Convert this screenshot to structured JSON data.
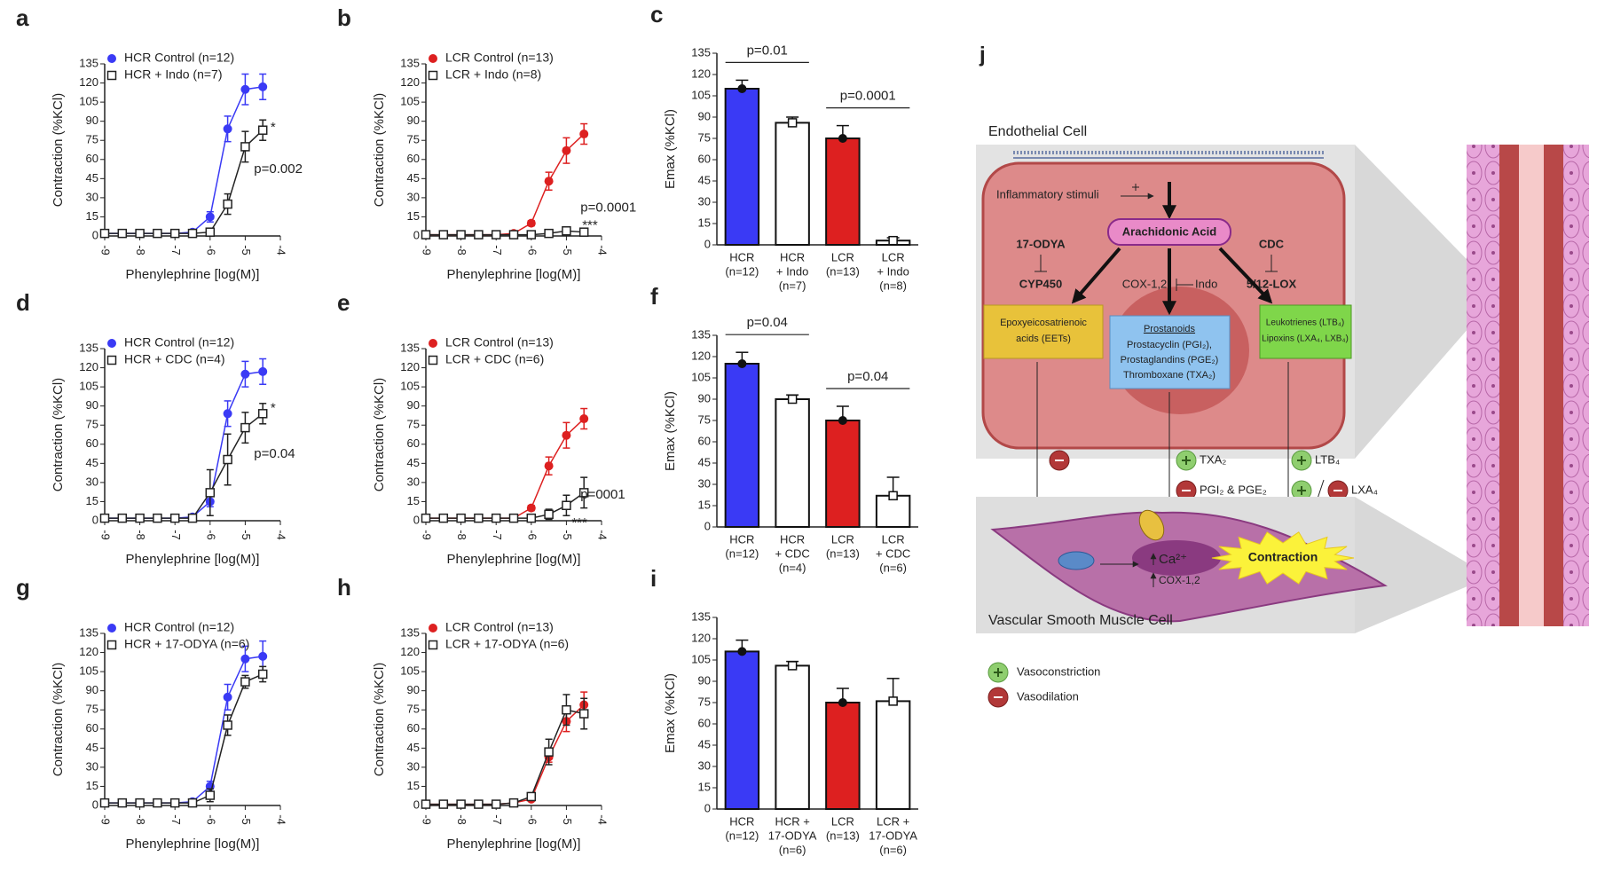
{
  "chart_data": [
    {
      "type": "line",
      "panel": "a",
      "ylabel": "Contraction (%KCl)",
      "xlabel": "Phenylephrine [log(M)]",
      "xlim": [
        -9,
        -4
      ],
      "xticks": [
        -9,
        -8,
        -7,
        -6,
        -5,
        -4
      ],
      "ylim": [
        0,
        135
      ],
      "yticks": [
        0,
        15,
        30,
        45,
        60,
        75,
        90,
        105,
        120,
        135
      ],
      "x": [
        -9,
        -8.5,
        -8,
        -7.5,
        -7,
        -6.5,
        -6,
        -5.5,
        -5,
        -4.5
      ],
      "series": [
        {
          "name": "HCR Control (n=12)",
          "color": "#3a3af5",
          "marker": "circle",
          "values": [
            2,
            2,
            2,
            2,
            2,
            3,
            15,
            84,
            115,
            117
          ],
          "errors": [
            null,
            null,
            null,
            null,
            null,
            null,
            4,
            10,
            12,
            10
          ]
        },
        {
          "name": "HCR + Indo (n=7)",
          "color": "#222222",
          "marker": "square",
          "values": [
            2,
            2,
            2,
            2,
            2,
            2,
            3,
            25,
            70,
            83
          ],
          "errors": [
            null,
            null,
            null,
            null,
            null,
            null,
            null,
            8,
            12,
            8
          ]
        }
      ],
      "annotations": [
        "*",
        "p=0.002"
      ]
    },
    {
      "type": "line",
      "panel": "b",
      "ylabel": "Contraction (%KCl)",
      "xlabel": "Phenylephrine [log(M)]",
      "xlim": [
        -9,
        -4
      ],
      "xticks": [
        -9,
        -8,
        -7,
        -6,
        -5,
        -4
      ],
      "ylim": [
        0,
        135
      ],
      "yticks": [
        0,
        15,
        30,
        45,
        60,
        75,
        90,
        105,
        120,
        135
      ],
      "x": [
        -9,
        -8.5,
        -8,
        -7.5,
        -7,
        -6.5,
        -6,
        -5.5,
        -5,
        -4.5
      ],
      "series": [
        {
          "name": "LCR Control (n=13)",
          "color": "#dd2020",
          "marker": "circle",
          "values": [
            1,
            1,
            1,
            1,
            1,
            2,
            10,
            43,
            67,
            80
          ],
          "errors": [
            null,
            null,
            null,
            null,
            null,
            null,
            2,
            7,
            10,
            8
          ]
        },
        {
          "name": "LCR + Indo (n=8)",
          "color": "#222222",
          "marker": "square",
          "values": [
            1,
            1,
            1,
            1,
            1,
            1,
            1,
            2,
            4,
            3
          ],
          "errors": [
            null,
            null,
            null,
            null,
            null,
            null,
            null,
            null,
            null,
            null
          ]
        }
      ],
      "annotations": [
        "p=0.0001",
        "***"
      ]
    },
    {
      "type": "bar",
      "panel": "c",
      "ylabel": "Emax (%KCl)",
      "ylim": [
        0,
        135
      ],
      "yticks": [
        0,
        15,
        30,
        45,
        60,
        75,
        90,
        105,
        120,
        135
      ],
      "categories": [
        [
          "HCR",
          "(n=12)"
        ],
        [
          "HCR",
          "+ Indo",
          "(n=7)"
        ],
        [
          "LCR",
          "(n=13)"
        ],
        [
          "LCR",
          "+ Indo",
          "(n=8)"
        ]
      ],
      "values": [
        110,
        86,
        75,
        3
      ],
      "errors": [
        6,
        4,
        9,
        2
      ],
      "colors": [
        "#3a3af5",
        "#ffffff",
        "#dd2020",
        "#ffffff"
      ],
      "markers": [
        "circle",
        "square",
        "circle",
        "square"
      ],
      "comparisons": [
        {
          "bars": [
            0,
            1
          ],
          "label": "p=0.01"
        },
        {
          "bars": [
            2,
            3
          ],
          "label": "p=0.0001"
        }
      ]
    },
    {
      "type": "line",
      "panel": "d",
      "ylabel": "Contraction (%KCl)",
      "xlabel": "Phenylephrine [log(M)]",
      "xlim": [
        -9,
        -4
      ],
      "xticks": [
        -9,
        -8,
        -7,
        -6,
        -5,
        -4
      ],
      "ylim": [
        0,
        135
      ],
      "yticks": [
        0,
        15,
        30,
        45,
        60,
        75,
        90,
        105,
        120,
        135
      ],
      "x": [
        -9,
        -8.5,
        -8,
        -7.5,
        -7,
        -6.5,
        -6,
        -5.5,
        -5,
        -4.5
      ],
      "series": [
        {
          "name": "HCR Control (n=12)",
          "color": "#3a3af5",
          "marker": "circle",
          "values": [
            2,
            2,
            2,
            2,
            2,
            3,
            15,
            84,
            115,
            117
          ],
          "errors": [
            null,
            null,
            null,
            null,
            null,
            null,
            4,
            10,
            10,
            10
          ]
        },
        {
          "name": "HCR + CDC (n=4)",
          "color": "#222222",
          "marker": "square",
          "values": [
            2,
            2,
            2,
            2,
            2,
            2,
            22,
            48,
            73,
            84
          ],
          "errors": [
            null,
            null,
            null,
            null,
            null,
            null,
            18,
            20,
            12,
            8
          ]
        }
      ],
      "annotations": [
        "*",
        "p=0.04"
      ]
    },
    {
      "type": "line",
      "panel": "e",
      "ylabel": "Contraction (%KCl)",
      "xlabel": "Phenylephrine [log(M)]",
      "xlim": [
        -9,
        -4
      ],
      "xticks": [
        -9,
        -8,
        -7,
        -6,
        -5,
        -4
      ],
      "ylim": [
        0,
        135
      ],
      "yticks": [
        0,
        15,
        30,
        45,
        60,
        75,
        90,
        105,
        120,
        135
      ],
      "x": [
        -9,
        -8.5,
        -8,
        -7.5,
        -7,
        -6.5,
        -6,
        -5.5,
        -5,
        -4.5
      ],
      "series": [
        {
          "name": "LCR Control (n=13)",
          "color": "#dd2020",
          "marker": "circle",
          "values": [
            2,
            2,
            2,
            2,
            2,
            2,
            10,
            43,
            67,
            80
          ],
          "errors": [
            null,
            null,
            null,
            null,
            null,
            null,
            2,
            7,
            10,
            8
          ]
        },
        {
          "name": "LCR + CDC (n=6)",
          "color": "#222222",
          "marker": "square",
          "values": [
            2,
            2,
            2,
            2,
            2,
            2,
            2,
            5,
            12,
            22
          ],
          "errors": [
            null,
            null,
            null,
            null,
            null,
            null,
            null,
            4,
            8,
            12
          ]
        }
      ],
      "annotations": [
        "p=0001",
        "***"
      ]
    },
    {
      "type": "bar",
      "panel": "f",
      "ylabel": "Emax (%KCl)",
      "ylim": [
        0,
        135
      ],
      "yticks": [
        0,
        15,
        30,
        45,
        60,
        75,
        90,
        105,
        120,
        135
      ],
      "categories": [
        [
          "HCR",
          "(n=12)"
        ],
        [
          "HCR",
          "+ CDC",
          "(n=4)"
        ],
        [
          "LCR",
          "(n=13)"
        ],
        [
          "LCR",
          "+ CDC",
          "(n=6)"
        ]
      ],
      "values": [
        115,
        90,
        75,
        22
      ],
      "errors": [
        8,
        3,
        10,
        13
      ],
      "colors": [
        "#3a3af5",
        "#ffffff",
        "#dd2020",
        "#ffffff"
      ],
      "markers": [
        "circle",
        "square",
        "circle",
        "square"
      ],
      "comparisons": [
        {
          "bars": [
            0,
            1
          ],
          "label": "p=0.04"
        },
        {
          "bars": [
            2,
            3
          ],
          "label": "p=0.04"
        }
      ]
    },
    {
      "type": "line",
      "panel": "g",
      "ylabel": "Contraction (%KCl)",
      "xlabel": "Phenylephrine [log(M)]",
      "xlim": [
        -9,
        -4
      ],
      "xticks": [
        -9,
        -8,
        -7,
        -6,
        -5,
        -4
      ],
      "ylim": [
        0,
        135
      ],
      "yticks": [
        0,
        15,
        30,
        45,
        60,
        75,
        90,
        105,
        120,
        135
      ],
      "x": [
        -9,
        -8.5,
        -8,
        -7.5,
        -7,
        -6.5,
        -6,
        -5.5,
        -5,
        -4.5
      ],
      "series": [
        {
          "name": "HCR Control (n=12)",
          "color": "#3a3af5",
          "marker": "circle",
          "values": [
            2,
            2,
            2,
            2,
            2,
            3,
            15,
            85,
            115,
            117
          ],
          "errors": [
            null,
            null,
            null,
            null,
            null,
            null,
            4,
            10,
            10,
            12
          ]
        },
        {
          "name": "HCR + 17-ODYA (n=6)",
          "color": "#222222",
          "marker": "square",
          "values": [
            2,
            2,
            2,
            2,
            2,
            2,
            8,
            63,
            97,
            103
          ],
          "errors": [
            null,
            null,
            null,
            null,
            null,
            null,
            5,
            8,
            5,
            6
          ]
        }
      ],
      "annotations": []
    },
    {
      "type": "line",
      "panel": "h",
      "ylabel": "Contraction (%KCl)",
      "xlabel": "Phenylephrine [log(M)]",
      "xlim": [
        -9,
        -4
      ],
      "xticks": [
        -9,
        -8,
        -7,
        -6,
        -5,
        -4
      ],
      "ylim": [
        0,
        135
      ],
      "yticks": [
        0,
        15,
        30,
        45,
        60,
        75,
        90,
        105,
        120,
        135
      ],
      "x": [
        -9,
        -8.5,
        -8,
        -7.5,
        -7,
        -6.5,
        -6,
        -5.5,
        -5,
        -4.5
      ],
      "series": [
        {
          "name": "LCR Control (n=13)",
          "color": "#dd2020",
          "marker": "circle",
          "values": [
            1,
            1,
            1,
            1,
            1,
            2,
            5,
            38,
            66,
            79
          ],
          "errors": [
            null,
            null,
            null,
            null,
            null,
            null,
            null,
            4,
            8,
            10
          ]
        },
        {
          "name": "LCR + 17-ODYA (n=6)",
          "color": "#222222",
          "marker": "square",
          "values": [
            1,
            1,
            1,
            1,
            1,
            2,
            7,
            42,
            75,
            72
          ],
          "errors": [
            null,
            null,
            null,
            null,
            null,
            null,
            3,
            10,
            12,
            12
          ]
        }
      ],
      "annotations": []
    },
    {
      "type": "bar",
      "panel": "i",
      "ylabel": "Emax (%KCl)",
      "ylim": [
        0,
        135
      ],
      "yticks": [
        0,
        15,
        30,
        45,
        60,
        75,
        90,
        105,
        120,
        135
      ],
      "categories": [
        [
          "HCR",
          "(n=12)"
        ],
        [
          "HCR +",
          "17-ODYA",
          "(n=6)"
        ],
        [
          "LCR",
          "(n=13)"
        ],
        [
          "LCR +",
          "17-ODYA",
          "(n=6)"
        ]
      ],
      "values": [
        111,
        101,
        75,
        76
      ],
      "errors": [
        8,
        3,
        10,
        16
      ],
      "colors": [
        "#3a3af5",
        "#ffffff",
        "#dd2020",
        "#ffffff"
      ],
      "markers": [
        "circle",
        "square",
        "circle",
        "square"
      ],
      "comparisons": []
    }
  ],
  "diagram": {
    "label": "j",
    "endothelial_cell": "Endothelial Cell",
    "stimuli": "Inflammatory stimuli",
    "arachidonic_acid": "Arachidonic Acid",
    "odya": "17-ODYA",
    "cyp450": "CYP450",
    "cdc": "CDC",
    "lox": "5/12-LOX",
    "cox": "COX-1,2",
    "indo": "Indo",
    "eets": [
      "Epoxyeicosatrienoic",
      "acids (EETs)"
    ],
    "prostanoids": {
      "title": "Prostanoids",
      "lines": [
        "Prostacyclin (PGI₂),",
        "Prostaglandins (PGE₂)",
        "Thromboxane (TXA₂)"
      ]
    },
    "leukotrienes": [
      "Leukotrienes (LTB₄)",
      "Lipoxins (LXA₄, LXB₄)"
    ],
    "txa2": "TXA₂",
    "pgi2_pge2": "PGI₂ & PGE₂",
    "ltb4": "LTB₄",
    "lxa4": "LXA₄",
    "calcium": "Ca²⁺",
    "smc_cox": "COX-1,2",
    "contraction": "Contraction",
    "smc": "Vascular Smooth Muscle Cell",
    "legend": [
      "Vasoconstriction",
      "Vasodilation"
    ]
  }
}
